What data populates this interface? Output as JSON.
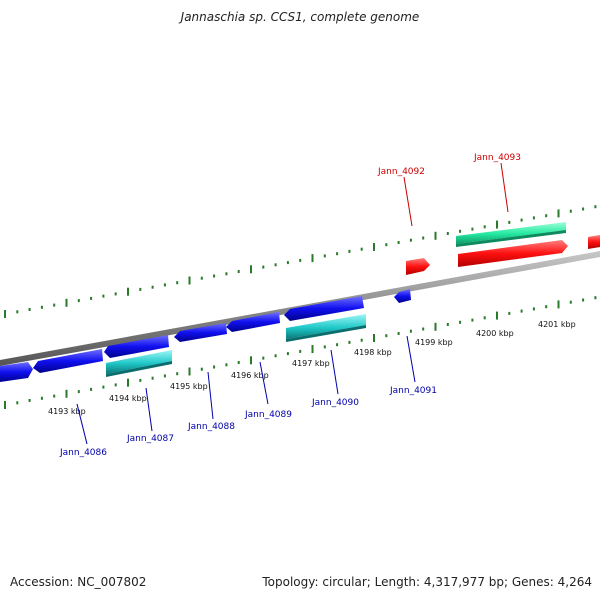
{
  "title": "Jannaschia sp. CCS1, complete genome",
  "footer": {
    "accession": "Accession: NC_007802",
    "summary": "Topology: circular; Length: 4,317,977 bp; Genes: 4,264"
  },
  "colors": {
    "forward_gene": "#ff1a1a",
    "forward_feature": "#2ae8a8",
    "reverse_gene": "#1a1aff",
    "reverse_feature": "#22c8c8",
    "backbone": "#888888",
    "tick": "#2a7a2a",
    "label_forward": "#cc0000",
    "label_reverse": "#0000aa"
  },
  "scale_labels": [
    "4193 kbp",
    "4194 kbp",
    "4195 kbp",
    "4196 kbp",
    "4197 kbp",
    "4198 kbp",
    "4199 kbp",
    "4200 kbp",
    "4201 kbp"
  ],
  "forward_gene_labels": [
    "Jann_4092",
    "Jann_4093"
  ],
  "reverse_gene_labels": [
    "Jann_4086",
    "Jann_4087",
    "Jann_4088",
    "Jann_4089",
    "Jann_4090",
    "Jann_4091"
  ]
}
